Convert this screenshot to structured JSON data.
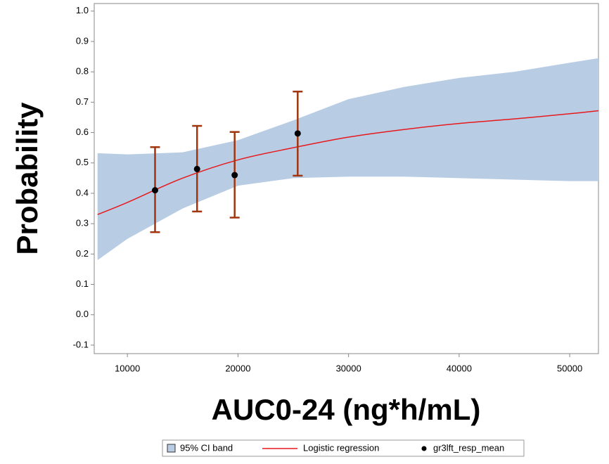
{
  "chart_data": {
    "type": "logistic-fit",
    "x_label": "AUC0-24 (ng*h/mL)",
    "y_label": "Probability",
    "xlim": [
      7000,
      52600
    ],
    "ylim": [
      -0.128,
      1.025
    ],
    "xticks": [
      10000,
      20000,
      30000,
      40000,
      50000
    ],
    "yticks": [
      {
        "value": -0.1,
        "label": "-0.1"
      },
      {
        "value": 0,
        "label": "0.0"
      },
      0.1,
      0.2,
      0.3,
      0.4,
      0.5,
      0.6,
      0.7,
      0.8,
      0.9,
      {
        "value": 1,
        "label": "1.0"
      }
    ],
    "series": [
      {
        "name": "95% CI band",
        "kind": "band",
        "color": "#b8cce4",
        "x": [
          7300,
          10000,
          15000,
          20000,
          25000,
          30000,
          35000,
          40000,
          45000,
          50000,
          52600
        ],
        "upper": [
          0.532,
          0.528,
          0.535,
          0.575,
          0.64,
          0.71,
          0.75,
          0.78,
          0.8,
          0.83,
          0.845
        ],
        "lower": [
          0.18,
          0.25,
          0.35,
          0.425,
          0.45,
          0.455,
          0.455,
          0.45,
          0.445,
          0.44,
          0.44
        ]
      },
      {
        "name": "Logistic regression",
        "kind": "line",
        "color": "#e8191c",
        "x": [
          7300,
          10000,
          15000,
          20000,
          25000,
          30000,
          35000,
          40000,
          45000,
          50000,
          52600
        ],
        "values": [
          0.33,
          0.37,
          0.45,
          0.51,
          0.55,
          0.585,
          0.61,
          0.63,
          0.645,
          0.662,
          0.672
        ]
      },
      {
        "name": "gr3lft_resp_mean",
        "kind": "scatter",
        "color": "#000000",
        "error_color": "#a0350e",
        "x": [
          12500,
          16300,
          19700,
          25400
        ],
        "values": [
          0.41,
          0.48,
          0.46,
          0.597
        ],
        "lower": [
          0.272,
          0.34,
          0.32,
          0.458
        ],
        "upper": [
          0.552,
          0.622,
          0.602,
          0.735
        ]
      }
    ]
  }
}
